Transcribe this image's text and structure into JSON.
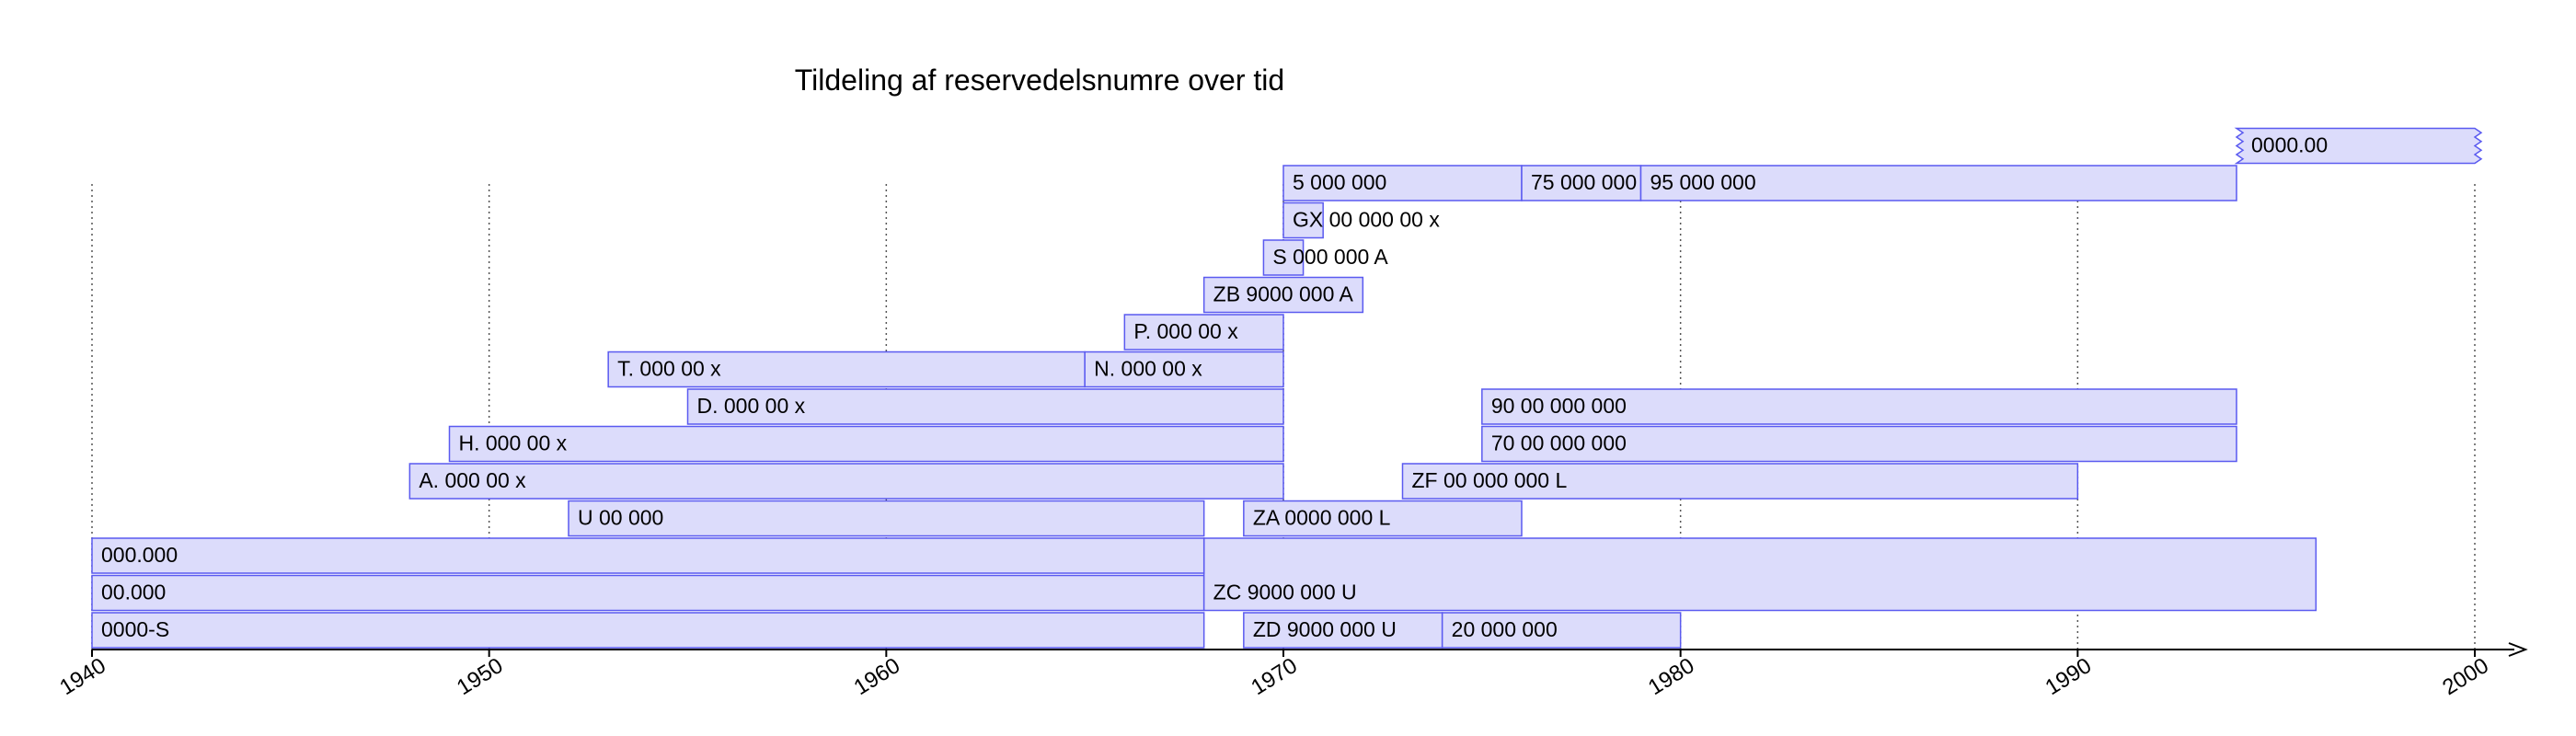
{
  "chart_data": {
    "type": "timeline",
    "title": "Tildeling af reservedelsnumre over tid",
    "xlabel": "",
    "ylabel": "",
    "xlim": [
      1940,
      2000
    ],
    "xticks": [
      1940,
      1950,
      1960,
      1970,
      1980,
      1990,
      2000
    ],
    "grid": "vertical dotted",
    "colors": {
      "fill": "#dcdcfb",
      "stroke": "#5a5af0",
      "grid": "#555555",
      "axis": "#000000"
    },
    "bars": [
      {
        "label": "0000-S",
        "start": 1940,
        "end": 1968,
        "row": 0
      },
      {
        "label": "ZD 9000 000 U",
        "start": 1969,
        "end": 1974,
        "row": 0
      },
      {
        "label": "20 000 000",
        "start": 1974,
        "end": 1980,
        "row": 0
      },
      {
        "label": "00.000",
        "start": 1940,
        "end": 1968,
        "row": 1
      },
      {
        "label": "ZC 9000 000 U",
        "start": 1968,
        "end": 1996,
        "row": 1,
        "span": 2
      },
      {
        "label": "000.000",
        "start": 1940,
        "end": 1968,
        "row": 2
      },
      {
        "label": "U 00 000",
        "start": 1952,
        "end": 1968,
        "row": 3
      },
      {
        "label": "ZA 0000 000 L",
        "start": 1969,
        "end": 1976,
        "row": 3
      },
      {
        "label": "A. 000 00 x",
        "start": 1948,
        "end": 1970,
        "row": 4
      },
      {
        "label": "ZF 00 000 000 L",
        "start": 1973,
        "end": 1990,
        "row": 4
      },
      {
        "label": "H. 000 00 x",
        "start": 1949,
        "end": 1970,
        "row": 5
      },
      {
        "label": "70 00 000 000",
        "start": 1975,
        "end": 1994,
        "row": 5
      },
      {
        "label": "D. 000 00 x",
        "start": 1955,
        "end": 1970,
        "row": 6
      },
      {
        "label": "90 00 000 000",
        "start": 1975,
        "end": 1994,
        "row": 6
      },
      {
        "label": "T. 000 00 x",
        "start": 1953,
        "end": 1965,
        "row": 7
      },
      {
        "label": "N. 000 00 x",
        "start": 1965,
        "end": 1970,
        "row": 7
      },
      {
        "label": "P. 000 00 x",
        "start": 1966,
        "end": 1970,
        "row": 8
      },
      {
        "label": "ZB 9000 000 A",
        "start": 1968,
        "end": 1972,
        "row": 9
      },
      {
        "label": "S 000 000 A",
        "start": 1969.5,
        "end": 1970.5,
        "row": 10
      },
      {
        "label": "GX 00 000 00 x",
        "start": 1970,
        "end": 1971,
        "row": 11
      },
      {
        "label": "5 000 000",
        "start": 1970,
        "end": 1976,
        "row": 12
      },
      {
        "label": "75 000 000",
        "start": 1976,
        "end": 1979,
        "row": 12
      },
      {
        "label": "95 000 000",
        "start": 1979,
        "end": 1994,
        "row": 12
      },
      {
        "label": "0000.00",
        "start": 1994,
        "end": 2000,
        "row": 13,
        "open_ended": true
      }
    ]
  }
}
